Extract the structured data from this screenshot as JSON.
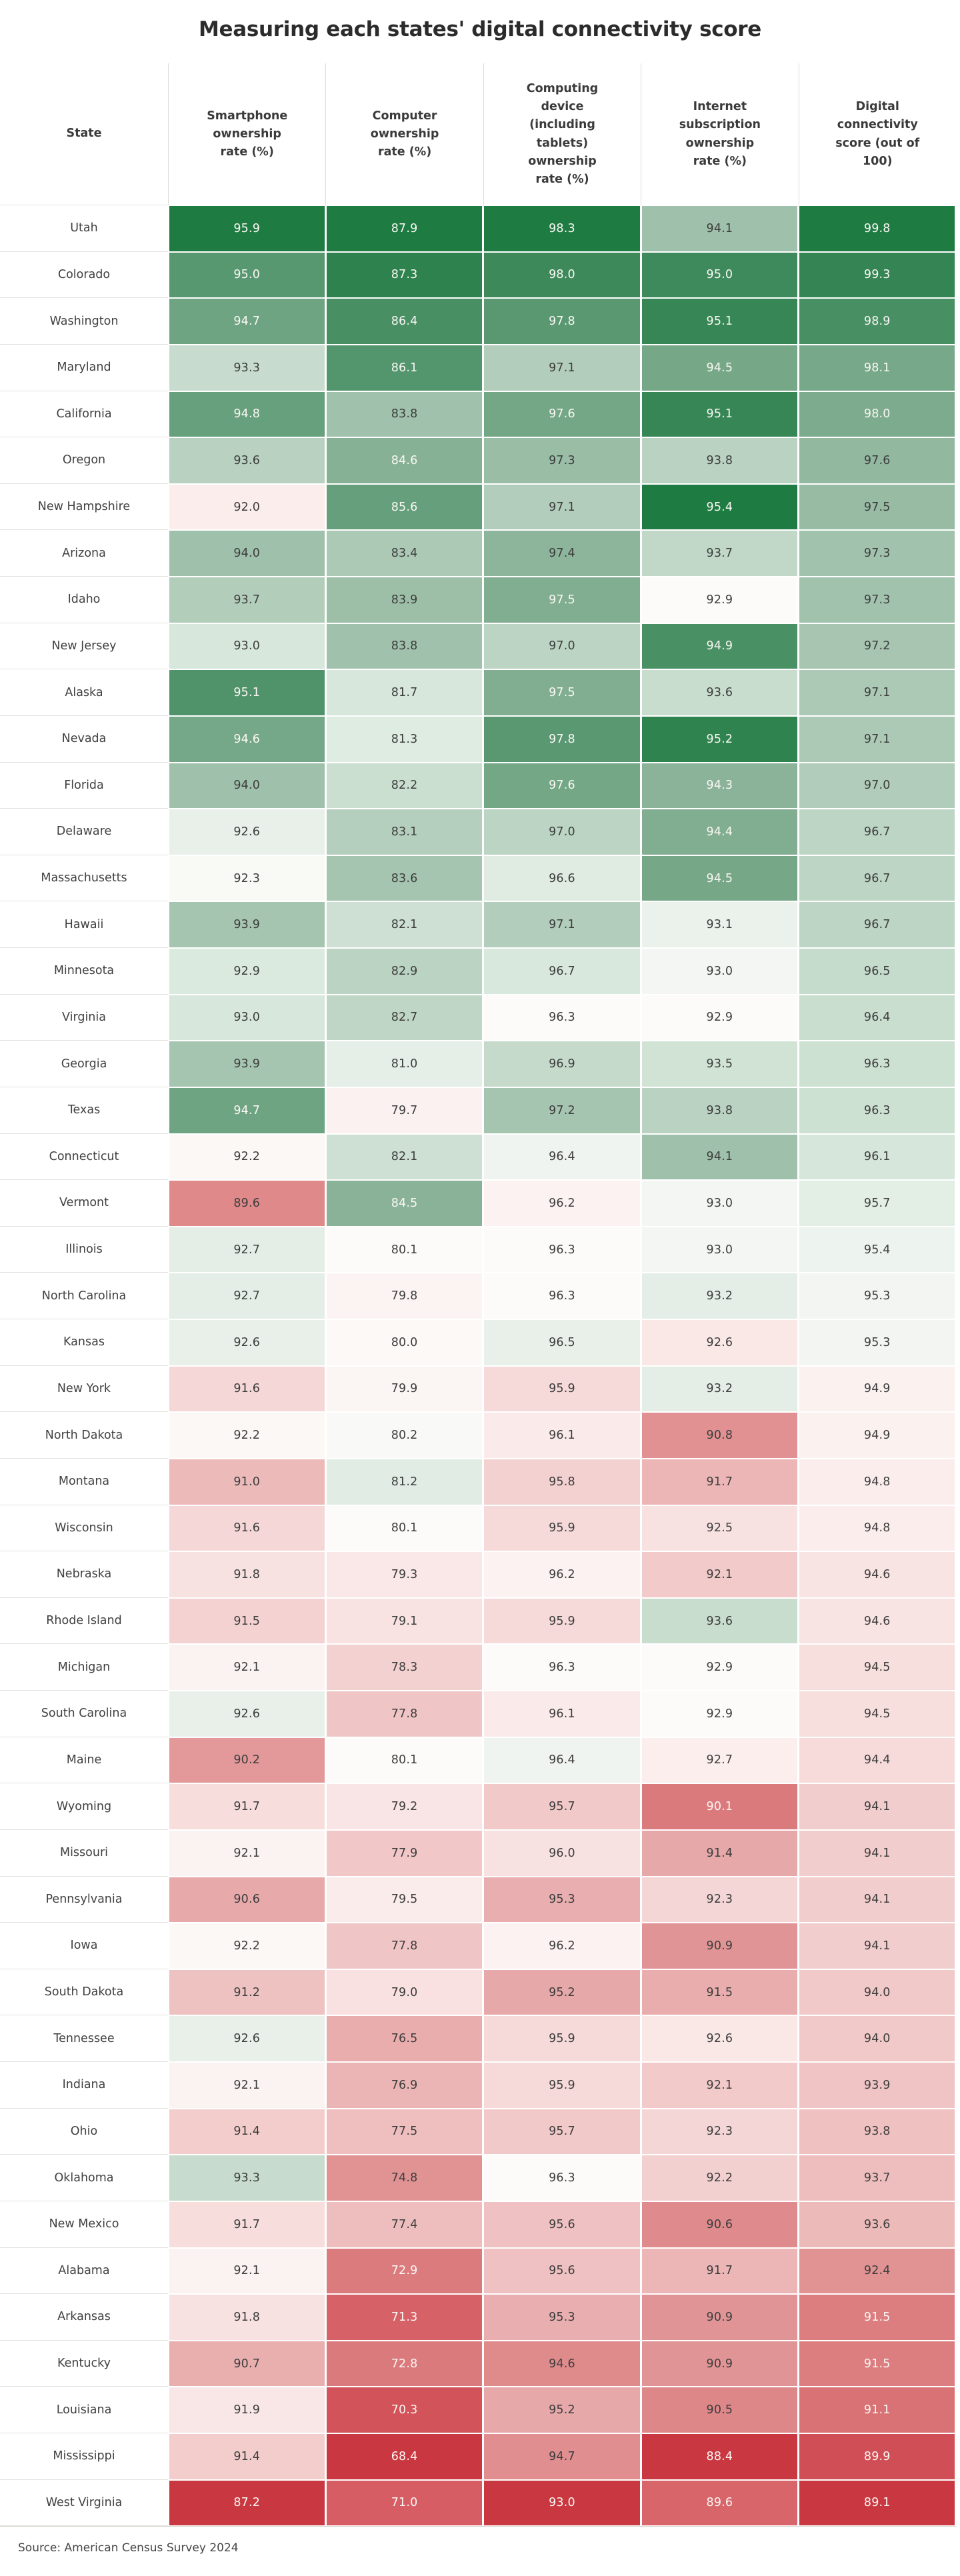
{
  "title": "Measuring each states' digital connectivity score",
  "source": "Source: American Census Survey 2024",
  "chart_data": {
    "type": "heatmap",
    "title": "Measuring each states' digital connectivity score",
    "columns": [
      "State",
      "Smartphone ownership rate (%)",
      "Computer ownership rate (%)",
      "Computing device (including tablets) ownership rate (%)",
      "Internet subscription ownership rate (%)",
      "Digital connectivity score (out of 100)"
    ],
    "rows": [
      {
        "state": "Utah",
        "values": [
          95.9,
          87.9,
          98.3,
          94.1,
          99.8
        ]
      },
      {
        "state": "Colorado",
        "values": [
          95.0,
          87.3,
          98.0,
          95.0,
          99.3
        ]
      },
      {
        "state": "Washington",
        "values": [
          94.7,
          86.4,
          97.8,
          95.1,
          98.9
        ]
      },
      {
        "state": "Maryland",
        "values": [
          93.3,
          86.1,
          97.1,
          94.5,
          98.1
        ]
      },
      {
        "state": "California",
        "values": [
          94.8,
          83.8,
          97.6,
          95.1,
          98.0
        ]
      },
      {
        "state": "Oregon",
        "values": [
          93.6,
          84.6,
          97.3,
          93.8,
          97.6
        ]
      },
      {
        "state": "New Hampshire",
        "values": [
          92.0,
          85.6,
          97.1,
          95.4,
          97.5
        ]
      },
      {
        "state": "Arizona",
        "values": [
          94.0,
          83.4,
          97.4,
          93.7,
          97.3
        ]
      },
      {
        "state": "Idaho",
        "values": [
          93.7,
          83.9,
          97.5,
          92.9,
          97.3
        ]
      },
      {
        "state": "New Jersey",
        "values": [
          93.0,
          83.8,
          97.0,
          94.9,
          97.2
        ]
      },
      {
        "state": "Alaska",
        "values": [
          95.1,
          81.7,
          97.5,
          93.6,
          97.1
        ]
      },
      {
        "state": "Nevada",
        "values": [
          94.6,
          81.3,
          97.8,
          95.2,
          97.1
        ]
      },
      {
        "state": "Florida",
        "values": [
          94.0,
          82.2,
          97.6,
          94.3,
          97.0
        ]
      },
      {
        "state": "Delaware",
        "values": [
          92.6,
          83.1,
          97.0,
          94.4,
          96.7
        ]
      },
      {
        "state": "Massachusetts",
        "values": [
          92.3,
          83.6,
          96.6,
          94.5,
          96.7
        ]
      },
      {
        "state": "Hawaii",
        "values": [
          93.9,
          82.1,
          97.1,
          93.1,
          96.7
        ]
      },
      {
        "state": "Minnesota",
        "values": [
          92.9,
          82.9,
          96.7,
          93.0,
          96.5
        ]
      },
      {
        "state": "Virginia",
        "values": [
          93.0,
          82.7,
          96.3,
          92.9,
          96.4
        ]
      },
      {
        "state": "Georgia",
        "values": [
          93.9,
          81.0,
          96.9,
          93.5,
          96.3
        ]
      },
      {
        "state": "Texas",
        "values": [
          94.7,
          79.7,
          97.2,
          93.8,
          96.3
        ]
      },
      {
        "state": "Connecticut",
        "values": [
          92.2,
          82.1,
          96.4,
          94.1,
          96.1
        ]
      },
      {
        "state": "Vermont",
        "values": [
          89.6,
          84.5,
          96.2,
          93.0,
          95.7
        ]
      },
      {
        "state": "Illinois",
        "values": [
          92.7,
          80.1,
          96.3,
          93.0,
          95.4
        ]
      },
      {
        "state": "North Carolina",
        "values": [
          92.7,
          79.8,
          96.3,
          93.2,
          95.3
        ]
      },
      {
        "state": "Kansas",
        "values": [
          92.6,
          80.0,
          96.5,
          92.6,
          95.3
        ]
      },
      {
        "state": "New York",
        "values": [
          91.6,
          79.9,
          95.9,
          93.2,
          94.9
        ]
      },
      {
        "state": "North Dakota",
        "values": [
          92.2,
          80.2,
          96.1,
          90.8,
          94.9
        ]
      },
      {
        "state": "Montana",
        "values": [
          91.0,
          81.2,
          95.8,
          91.7,
          94.8
        ]
      },
      {
        "state": "Wisconsin",
        "values": [
          91.6,
          80.1,
          95.9,
          92.5,
          94.8
        ]
      },
      {
        "state": "Nebraska",
        "values": [
          91.8,
          79.3,
          96.2,
          92.1,
          94.6
        ]
      },
      {
        "state": "Rhode Island",
        "values": [
          91.5,
          79.1,
          95.9,
          93.6,
          94.6
        ]
      },
      {
        "state": "Michigan",
        "values": [
          92.1,
          78.3,
          96.3,
          92.9,
          94.5
        ]
      },
      {
        "state": "South Carolina",
        "values": [
          92.6,
          77.8,
          96.1,
          92.9,
          94.5
        ]
      },
      {
        "state": "Maine",
        "values": [
          90.2,
          80.1,
          96.4,
          92.7,
          94.4
        ]
      },
      {
        "state": "Wyoming",
        "values": [
          91.7,
          79.2,
          95.7,
          90.1,
          94.1
        ]
      },
      {
        "state": "Missouri",
        "values": [
          92.1,
          77.9,
          96.0,
          91.4,
          94.1
        ]
      },
      {
        "state": "Pennsylvania",
        "values": [
          90.6,
          79.5,
          95.3,
          92.3,
          94.1
        ]
      },
      {
        "state": "Iowa",
        "values": [
          92.2,
          77.8,
          96.2,
          90.9,
          94.1
        ]
      },
      {
        "state": "South Dakota",
        "values": [
          91.2,
          79.0,
          95.2,
          91.5,
          94.0
        ]
      },
      {
        "state": "Tennessee",
        "values": [
          92.6,
          76.5,
          95.9,
          92.6,
          94.0
        ]
      },
      {
        "state": "Indiana",
        "values": [
          92.1,
          76.9,
          95.9,
          92.1,
          93.9
        ]
      },
      {
        "state": "Ohio",
        "values": [
          91.4,
          77.5,
          95.7,
          92.3,
          93.8
        ]
      },
      {
        "state": "Oklahoma",
        "values": [
          93.3,
          74.8,
          96.3,
          92.2,
          93.7
        ]
      },
      {
        "state": "New Mexico",
        "values": [
          91.7,
          77.4,
          95.6,
          90.6,
          93.6
        ]
      },
      {
        "state": "Alabama",
        "values": [
          92.1,
          72.9,
          95.6,
          91.7,
          92.4
        ]
      },
      {
        "state": "Arkansas",
        "values": [
          91.8,
          71.3,
          95.3,
          90.9,
          91.5
        ]
      },
      {
        "state": "Kentucky",
        "values": [
          90.7,
          72.8,
          94.6,
          90.9,
          91.5
        ]
      },
      {
        "state": "Louisiana",
        "values": [
          91.9,
          70.3,
          95.2,
          90.5,
          91.1
        ]
      },
      {
        "state": "Mississippi",
        "values": [
          91.4,
          68.4,
          94.7,
          88.4,
          89.9
        ]
      },
      {
        "state": "West Virginia",
        "values": [
          87.2,
          71.0,
          93.0,
          89.6,
          89.1
        ]
      }
    ],
    "color_scale": {
      "normalization": "per-column min to median to max",
      "stops": [
        [
          0.0,
          "#c93840"
        ],
        [
          0.1,
          "#d4595f"
        ],
        [
          0.2,
          "#dc7e80"
        ],
        [
          0.3,
          "#e39a9b"
        ],
        [
          0.4,
          "#f0c4c4"
        ],
        [
          0.47,
          "#faeae9"
        ],
        [
          0.5,
          "#fcfbf9"
        ],
        [
          0.53,
          "#eef3ee"
        ],
        [
          0.6,
          "#d8e8dc"
        ],
        [
          0.7,
          "#b2cdbb"
        ],
        [
          0.78,
          "#8bb399"
        ],
        [
          0.85,
          "#67a07c"
        ],
        [
          0.92,
          "#3f8a5c"
        ],
        [
          1.0,
          "#1e7b41"
        ]
      ],
      "white_text_above": 0.78,
      "white_text_below": 0.215,
      "text_dark": "#3c3c3c",
      "text_light": "#faf7f4"
    },
    "legend": "none",
    "grid": "white 2-3px gaps between cells"
  }
}
